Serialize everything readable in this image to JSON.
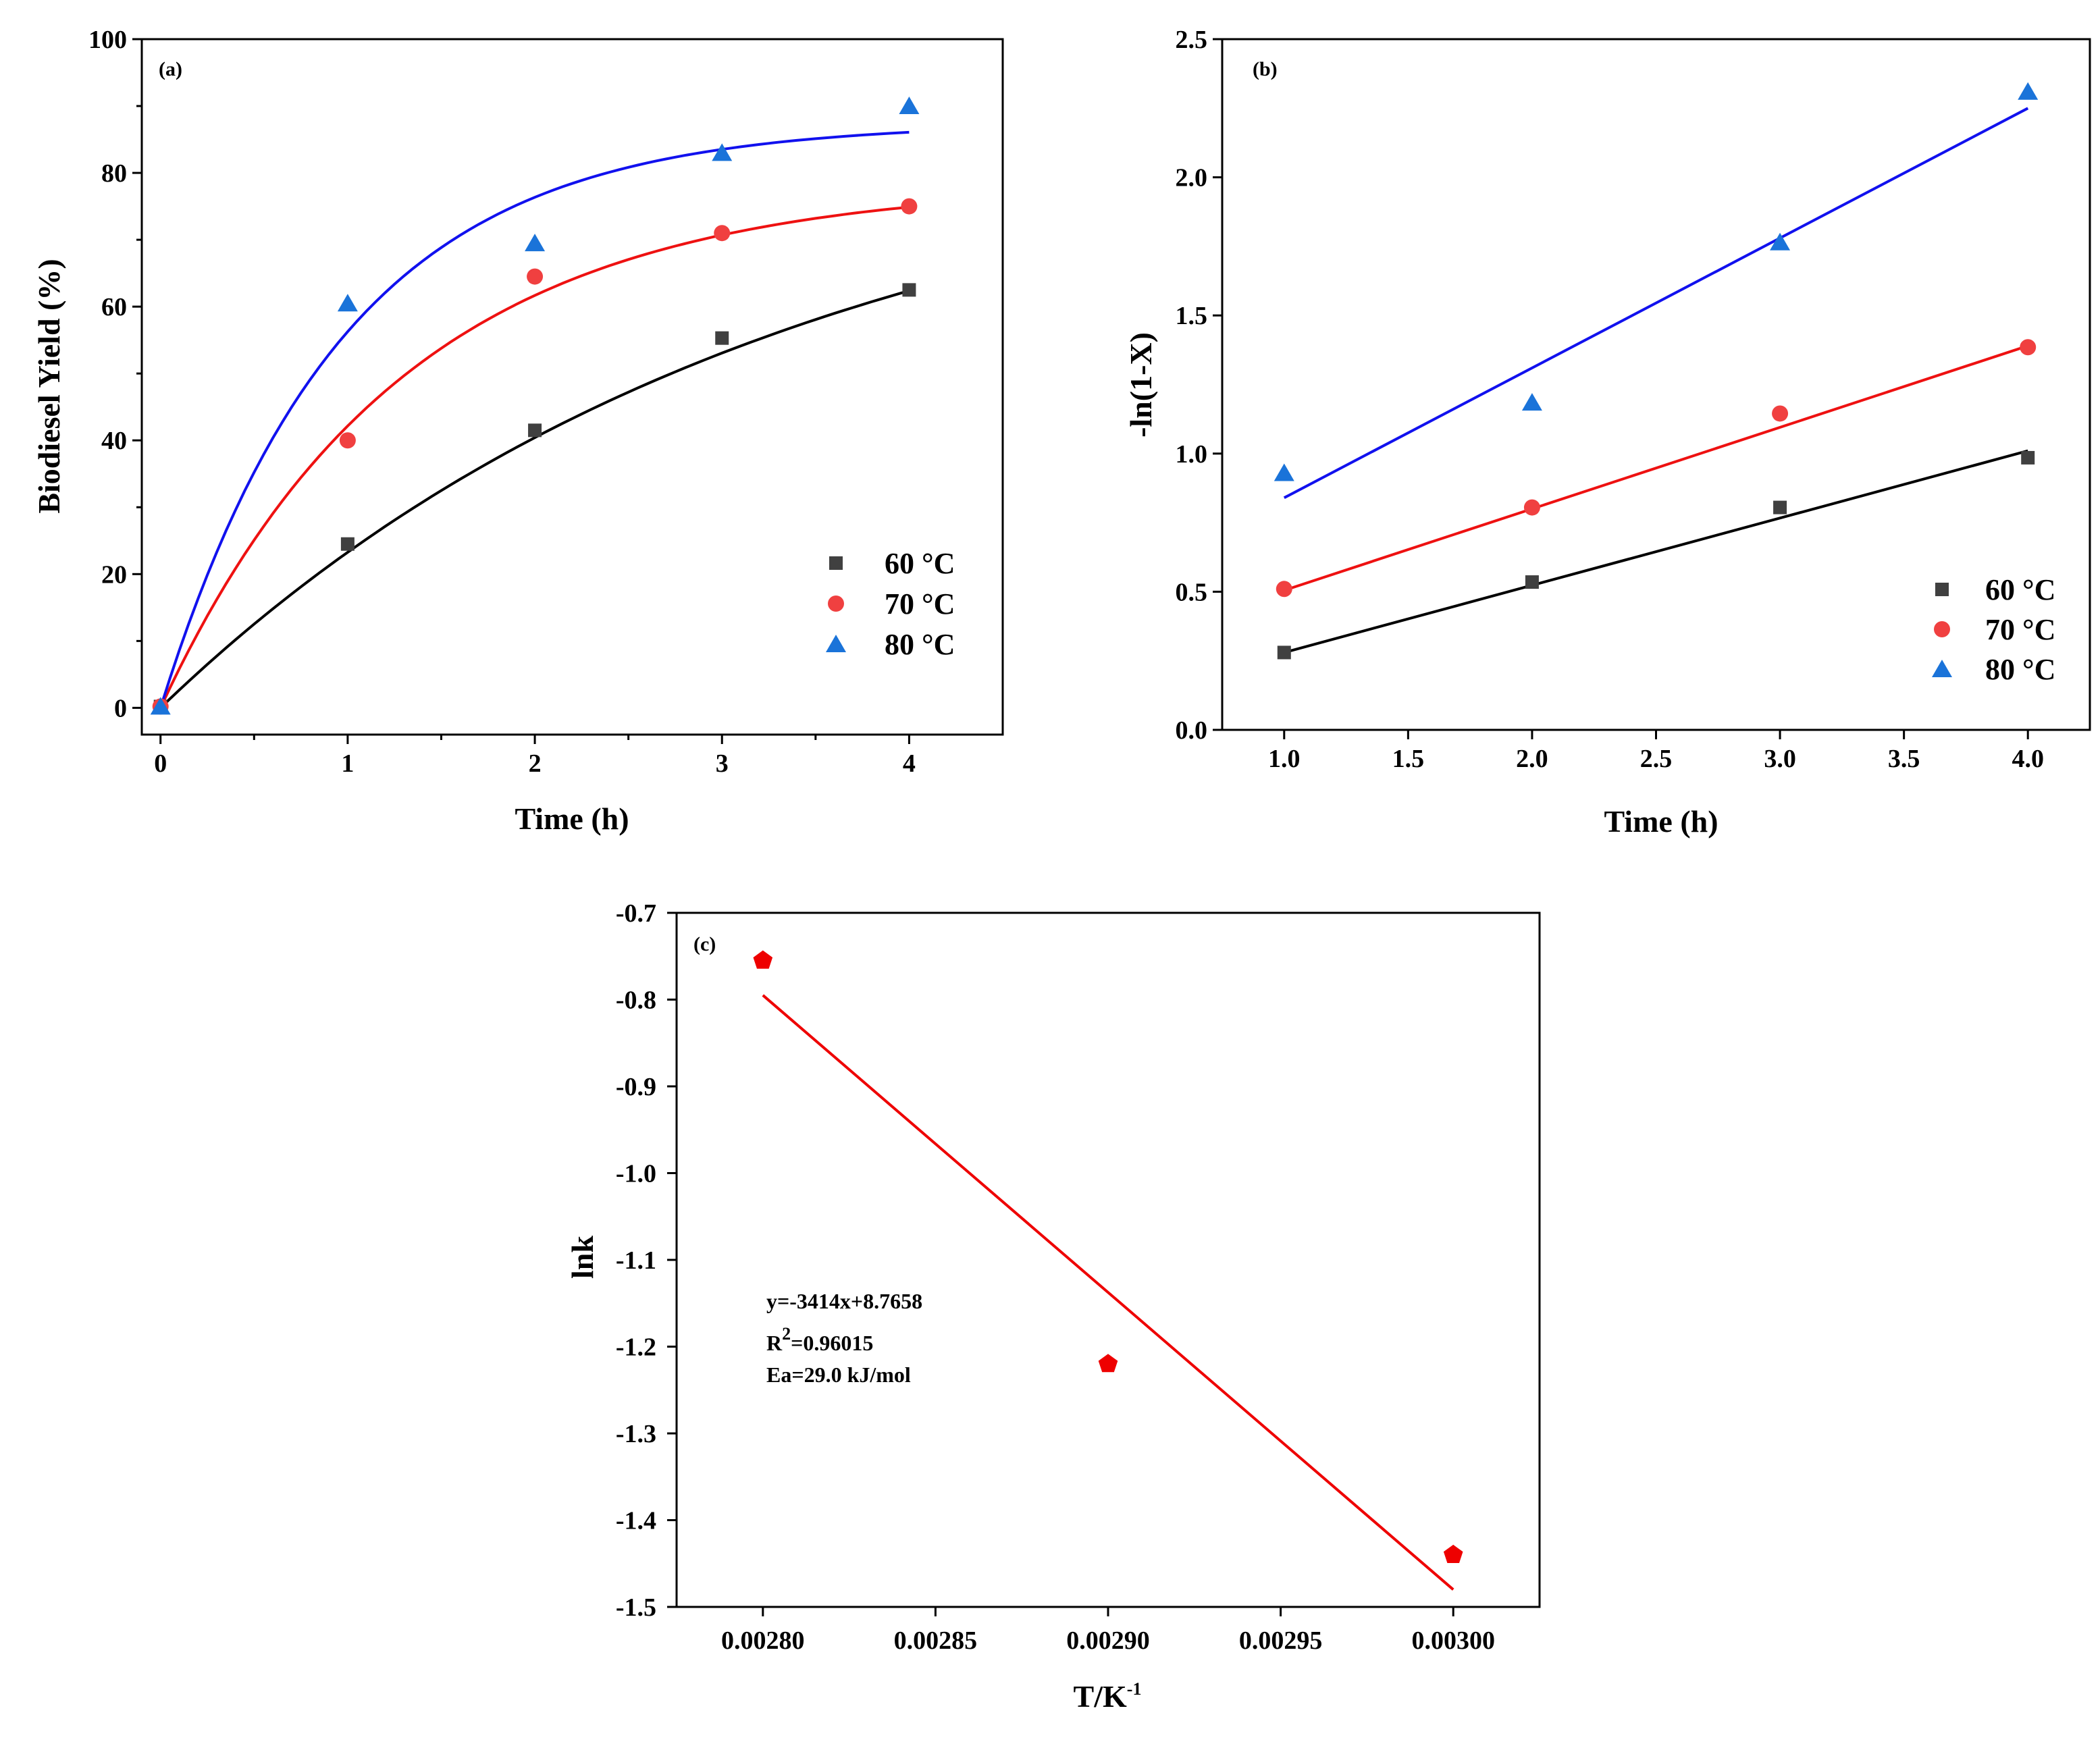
{
  "chart_data": [
    {
      "id": "a",
      "type": "scatter",
      "panel_label": "(a)",
      "xlabel": "Time (h)",
      "ylabel": "Biodiesel Yield (%)",
      "xlim": [
        -0.1,
        4.5
      ],
      "ylim": [
        -4,
        100
      ],
      "x_ticks": [
        0,
        1,
        2,
        3,
        4
      ],
      "x_minor_ticks": [
        0.5,
        1.5,
        2.5,
        3.5
      ],
      "x_tick_labels": [
        "0",
        "1",
        "2",
        "3",
        "4"
      ],
      "y_ticks": [
        0,
        20,
        40,
        60,
        80,
        100
      ],
      "y_minor_ticks": [
        10,
        30,
        50,
        70,
        90
      ],
      "y_tick_labels": [
        "0",
        "20",
        "40",
        "60",
        "80",
        "100"
      ],
      "legend_position": "lower-right",
      "series": [
        {
          "name": "60 °C",
          "color": "#404040",
          "marker": "square",
          "x": [
            0,
            1,
            2,
            3,
            4
          ],
          "y": [
            0.2,
            24.5,
            41.5,
            55.3,
            62.5
          ],
          "fit": {
            "kind": "exp-rise",
            "a": 88.5,
            "k": 0.305,
            "range": [
              0,
              4
            ]
          }
        },
        {
          "name": "70 °C",
          "color": "#f04040",
          "marker": "circle",
          "x": [
            0,
            1,
            2,
            3,
            4
          ],
          "y": [
            0.2,
            40,
            64.5,
            71,
            75
          ],
          "fit": {
            "kind": "exp-rise",
            "a": 78.5,
            "k": 0.77,
            "range": [
              0,
              4
            ]
          }
        },
        {
          "name": "80 °C",
          "color": "#1a73d9",
          "marker": "triangle",
          "x": [
            0,
            1,
            2,
            3,
            4
          ],
          "y": [
            0.2,
            60.5,
            69.5,
            83,
            90
          ],
          "fit": {
            "kind": "exp-rise",
            "a": 87.5,
            "k": 1.03,
            "range": [
              0,
              4
            ]
          }
        }
      ],
      "fit_colors": [
        "#000000",
        "#ee1111",
        "#1111ee"
      ]
    },
    {
      "id": "b",
      "type": "scatter",
      "panel_label": "(b)",
      "xlabel": "Time (h)",
      "ylabel": "-ln(1-X)",
      "xlim": [
        0.75,
        4.25
      ],
      "ylim": [
        0,
        2.5
      ],
      "x_ticks": [
        1.0,
        1.5,
        2.0,
        2.5,
        3.0,
        3.5,
        4.0
      ],
      "x_tick_labels": [
        "1.0",
        "1.5",
        "2.0",
        "2.5",
        "3.0",
        "3.5",
        "4.0"
      ],
      "y_ticks": [
        0,
        0.5,
        1.0,
        1.5,
        2.0,
        2.5
      ],
      "y_tick_labels": [
        "0.0",
        "0.5",
        "1.0",
        "1.5",
        "2.0",
        "2.5"
      ],
      "legend_position": "lower-right",
      "series": [
        {
          "name": "60 °C",
          "color": "#404040",
          "marker": "square",
          "x": [
            1,
            2,
            3,
            4
          ],
          "y": [
            0.28,
            0.535,
            0.805,
            0.985
          ],
          "fit": {
            "kind": "linear",
            "y0": 0.28,
            "y1": 1.01,
            "range": [
              1,
              4
            ]
          }
        },
        {
          "name": "70 °C",
          "color": "#f04040",
          "marker": "circle",
          "x": [
            1,
            2,
            3,
            4
          ],
          "y": [
            0.51,
            0.805,
            1.145,
            1.385
          ],
          "fit": {
            "kind": "linear",
            "y0": 0.505,
            "y1": 1.39,
            "range": [
              1,
              4
            ]
          }
        },
        {
          "name": "80 °C",
          "color": "#1a73d9",
          "marker": "triangle",
          "x": [
            1,
            2,
            3,
            4
          ],
          "y": [
            0.93,
            1.185,
            1.765,
            2.31
          ],
          "fit": {
            "kind": "linear",
            "y0": 0.84,
            "y1": 2.25,
            "range": [
              1,
              4
            ]
          }
        }
      ],
      "fit_colors": [
        "#000000",
        "#ee1111",
        "#1111ee"
      ]
    },
    {
      "id": "c",
      "type": "scatter",
      "panel_label": "(c)",
      "xlabel": "T/K",
      "xlabel_superscript": "-1",
      "ylabel": "lnk",
      "xlim": [
        0.002775,
        0.003025
      ],
      "ylim": [
        -1.5,
        -0.7
      ],
      "x_ticks": [
        0.0028,
        0.00285,
        0.0029,
        0.00295,
        0.003
      ],
      "x_tick_labels": [
        "0.00280",
        "0.00285",
        "0.00290",
        "0.00295",
        "0.00300"
      ],
      "y_ticks": [
        -1.5,
        -1.4,
        -1.3,
        -1.2,
        -1.1,
        -1.0,
        -0.9,
        -0.8,
        -0.7
      ],
      "y_tick_labels": [
        "-1.5",
        "-1.4",
        "-1.3",
        "-1.2",
        "-1.1",
        "-1.0",
        "-0.9",
        "-0.8",
        "-0.7"
      ],
      "series": [
        {
          "name": "lnk",
          "color": "#ee0000",
          "marker": "pentagon",
          "x": [
            0.0028,
            0.0029,
            0.003
          ],
          "y": [
            -0.755,
            -1.22,
            -1.44
          ],
          "fit": {
            "kind": "linear",
            "y0": -0.795,
            "y1": -1.48,
            "range": [
              0.0028,
              0.003
            ]
          }
        }
      ],
      "fit_colors": [
        "#ee0000"
      ],
      "annotations": {
        "equation": "y=-3414x+8.7658",
        "r2_prefix": "R",
        "r2_superscript": "2",
        "r2_value": "=0.96015",
        "activation_energy": "Ea=29.0 kJ/mol"
      }
    }
  ]
}
